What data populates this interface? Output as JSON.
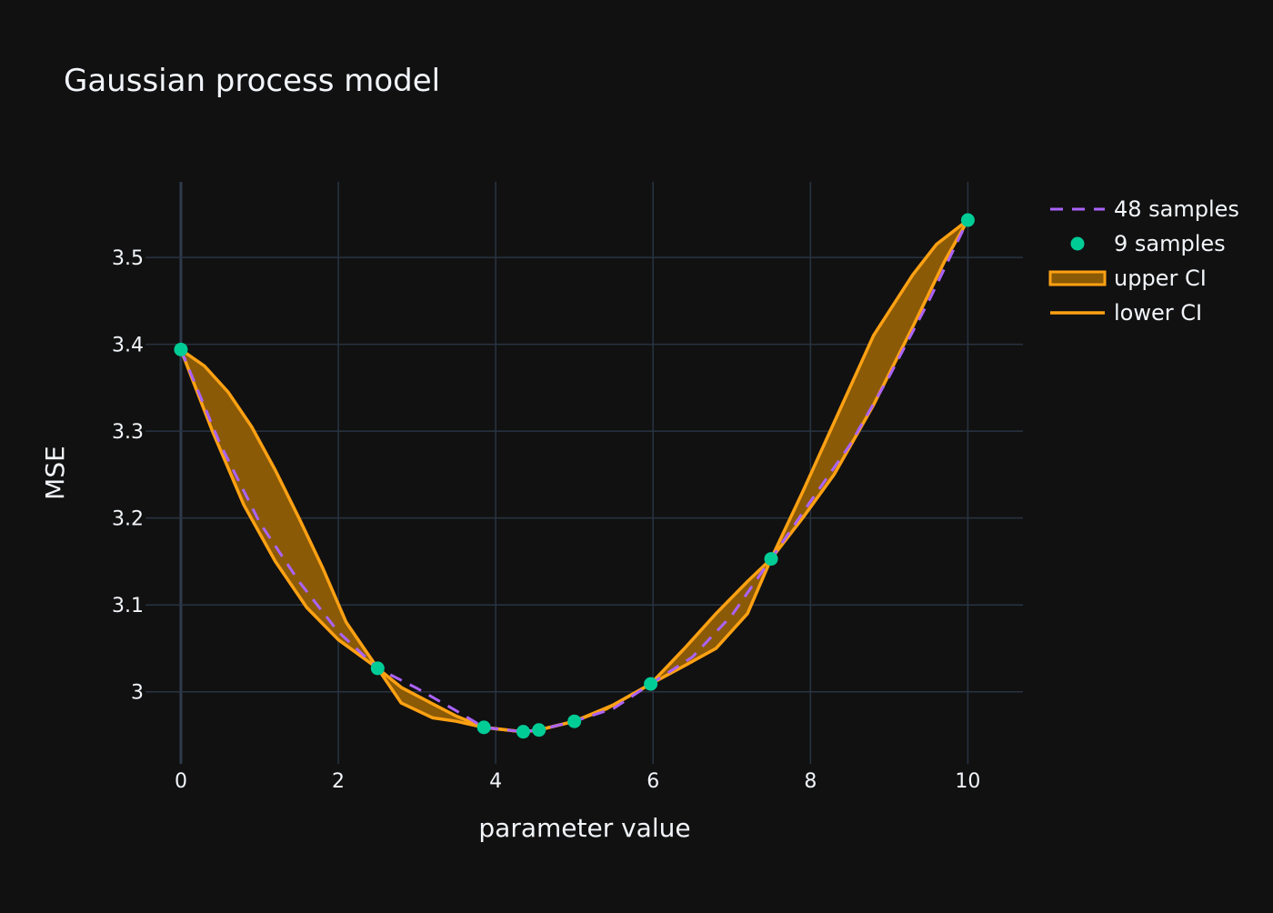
{
  "colors": {
    "background": "#111111",
    "grid": "#283442",
    "zeroline": "#2f3b4c",
    "text": "#f2f5fa",
    "mean_line": "#ab63fa",
    "samples": "#00cc96",
    "ci_line": "#ffa113",
    "ci_fill": "#8a5a06"
  },
  "chart_data": {
    "type": "line",
    "title": "Gaussian process model",
    "xlabel": "parameter value",
    "ylabel": "MSE",
    "xlim": [
      -0.45,
      10.7
    ],
    "ylim": [
      2.917,
      3.587
    ],
    "x_ticks": [
      0,
      2,
      4,
      6,
      8,
      10
    ],
    "x_tick_labels": [
      "0",
      "2",
      "4",
      "6",
      "8",
      "10"
    ],
    "y_ticks": [
      3.0,
      3.1,
      3.2,
      3.3,
      3.4,
      3.5
    ],
    "y_tick_labels": [
      "3",
      "3.1",
      "3.2",
      "3.3",
      "3.4",
      "3.5"
    ],
    "grid": true,
    "legend_position": "top-right",
    "series": [
      {
        "name": "48 samples",
        "style": "dashed-line",
        "x": [
          0,
          0.5,
          1.0,
          1.5,
          2.0,
          2.5,
          3.0,
          3.5,
          3.85,
          4.35,
          4.55,
          5.0,
          5.5,
          5.97,
          6.5,
          7.0,
          7.5,
          8.0,
          8.5,
          9.0,
          9.5,
          10.0
        ],
        "y": [
          3.394,
          3.285,
          3.195,
          3.127,
          3.069,
          3.027,
          3.004,
          2.978,
          2.959,
          2.954,
          2.956,
          2.966,
          2.981,
          3.009,
          3.04,
          3.088,
          3.153,
          3.219,
          3.284,
          3.363,
          3.449,
          3.543
        ]
      },
      {
        "name": "9 samples",
        "style": "markers",
        "x": [
          0,
          2.5,
          3.85,
          4.35,
          4.55,
          5.0,
          5.97,
          7.5,
          10.0
        ],
        "y": [
          3.394,
          3.027,
          2.959,
          2.954,
          2.956,
          2.966,
          3.009,
          3.153,
          3.543
        ]
      },
      {
        "name": "upper CI",
        "style": "line-fill",
        "x": [
          0,
          0.3,
          0.6,
          0.9,
          1.2,
          1.5,
          1.8,
          2.1,
          2.5,
          2.8,
          3.2,
          3.5,
          3.85,
          4.35,
          4.55,
          5.0,
          5.4,
          5.97,
          6.4,
          6.8,
          7.2,
          7.5,
          7.9,
          8.3,
          8.8,
          9.3,
          9.6,
          10.0
        ],
        "y": [
          3.394,
          3.375,
          3.345,
          3.305,
          3.255,
          3.2,
          3.143,
          3.08,
          3.027,
          3.005,
          2.986,
          2.972,
          2.959,
          2.954,
          2.956,
          2.966,
          2.98,
          3.009,
          3.05,
          3.09,
          3.127,
          3.153,
          3.23,
          3.31,
          3.41,
          3.48,
          3.515,
          3.543
        ]
      },
      {
        "name": "lower CI",
        "style": "line",
        "x": [
          0,
          0.4,
          0.8,
          1.2,
          1.6,
          2.0,
          2.5,
          2.8,
          3.2,
          3.5,
          3.85,
          4.35,
          4.55,
          5.0,
          5.5,
          5.97,
          6.4,
          6.8,
          7.2,
          7.5,
          7.9,
          8.3,
          8.8,
          9.3,
          9.7,
          10.0
        ],
        "y": [
          3.394,
          3.3,
          3.215,
          3.15,
          3.097,
          3.06,
          3.027,
          2.987,
          2.97,
          2.966,
          2.959,
          2.954,
          2.956,
          2.966,
          2.985,
          3.009,
          3.03,
          3.05,
          3.09,
          3.153,
          3.2,
          3.25,
          3.33,
          3.42,
          3.495,
          3.543
        ]
      }
    ]
  }
}
